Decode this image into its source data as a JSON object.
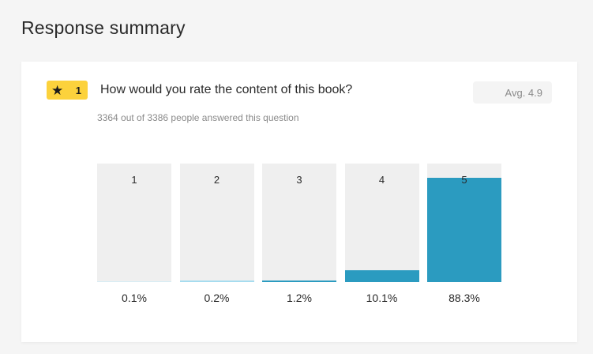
{
  "page": {
    "title": "Response summary"
  },
  "question": {
    "number": "1",
    "icon": "star-icon",
    "text": "How would you rate the content of this book?",
    "average": "Avg. 4.9",
    "answered": "3364 out of 3386 people answered this question"
  },
  "chart_data": {
    "type": "bar",
    "categories": [
      "1",
      "2",
      "3",
      "4",
      "5"
    ],
    "values": [
      0.1,
      0.2,
      1.2,
      10.1,
      88.3
    ],
    "value_labels": [
      "0.1%",
      "0.2%",
      "1.2%",
      "10.1%",
      "88.3%"
    ],
    "ylim": [
      0,
      100
    ],
    "colors": {
      "track": "#efefef",
      "fill_strong": "#2b9bc0",
      "fill_light": "#a6dcef"
    }
  }
}
